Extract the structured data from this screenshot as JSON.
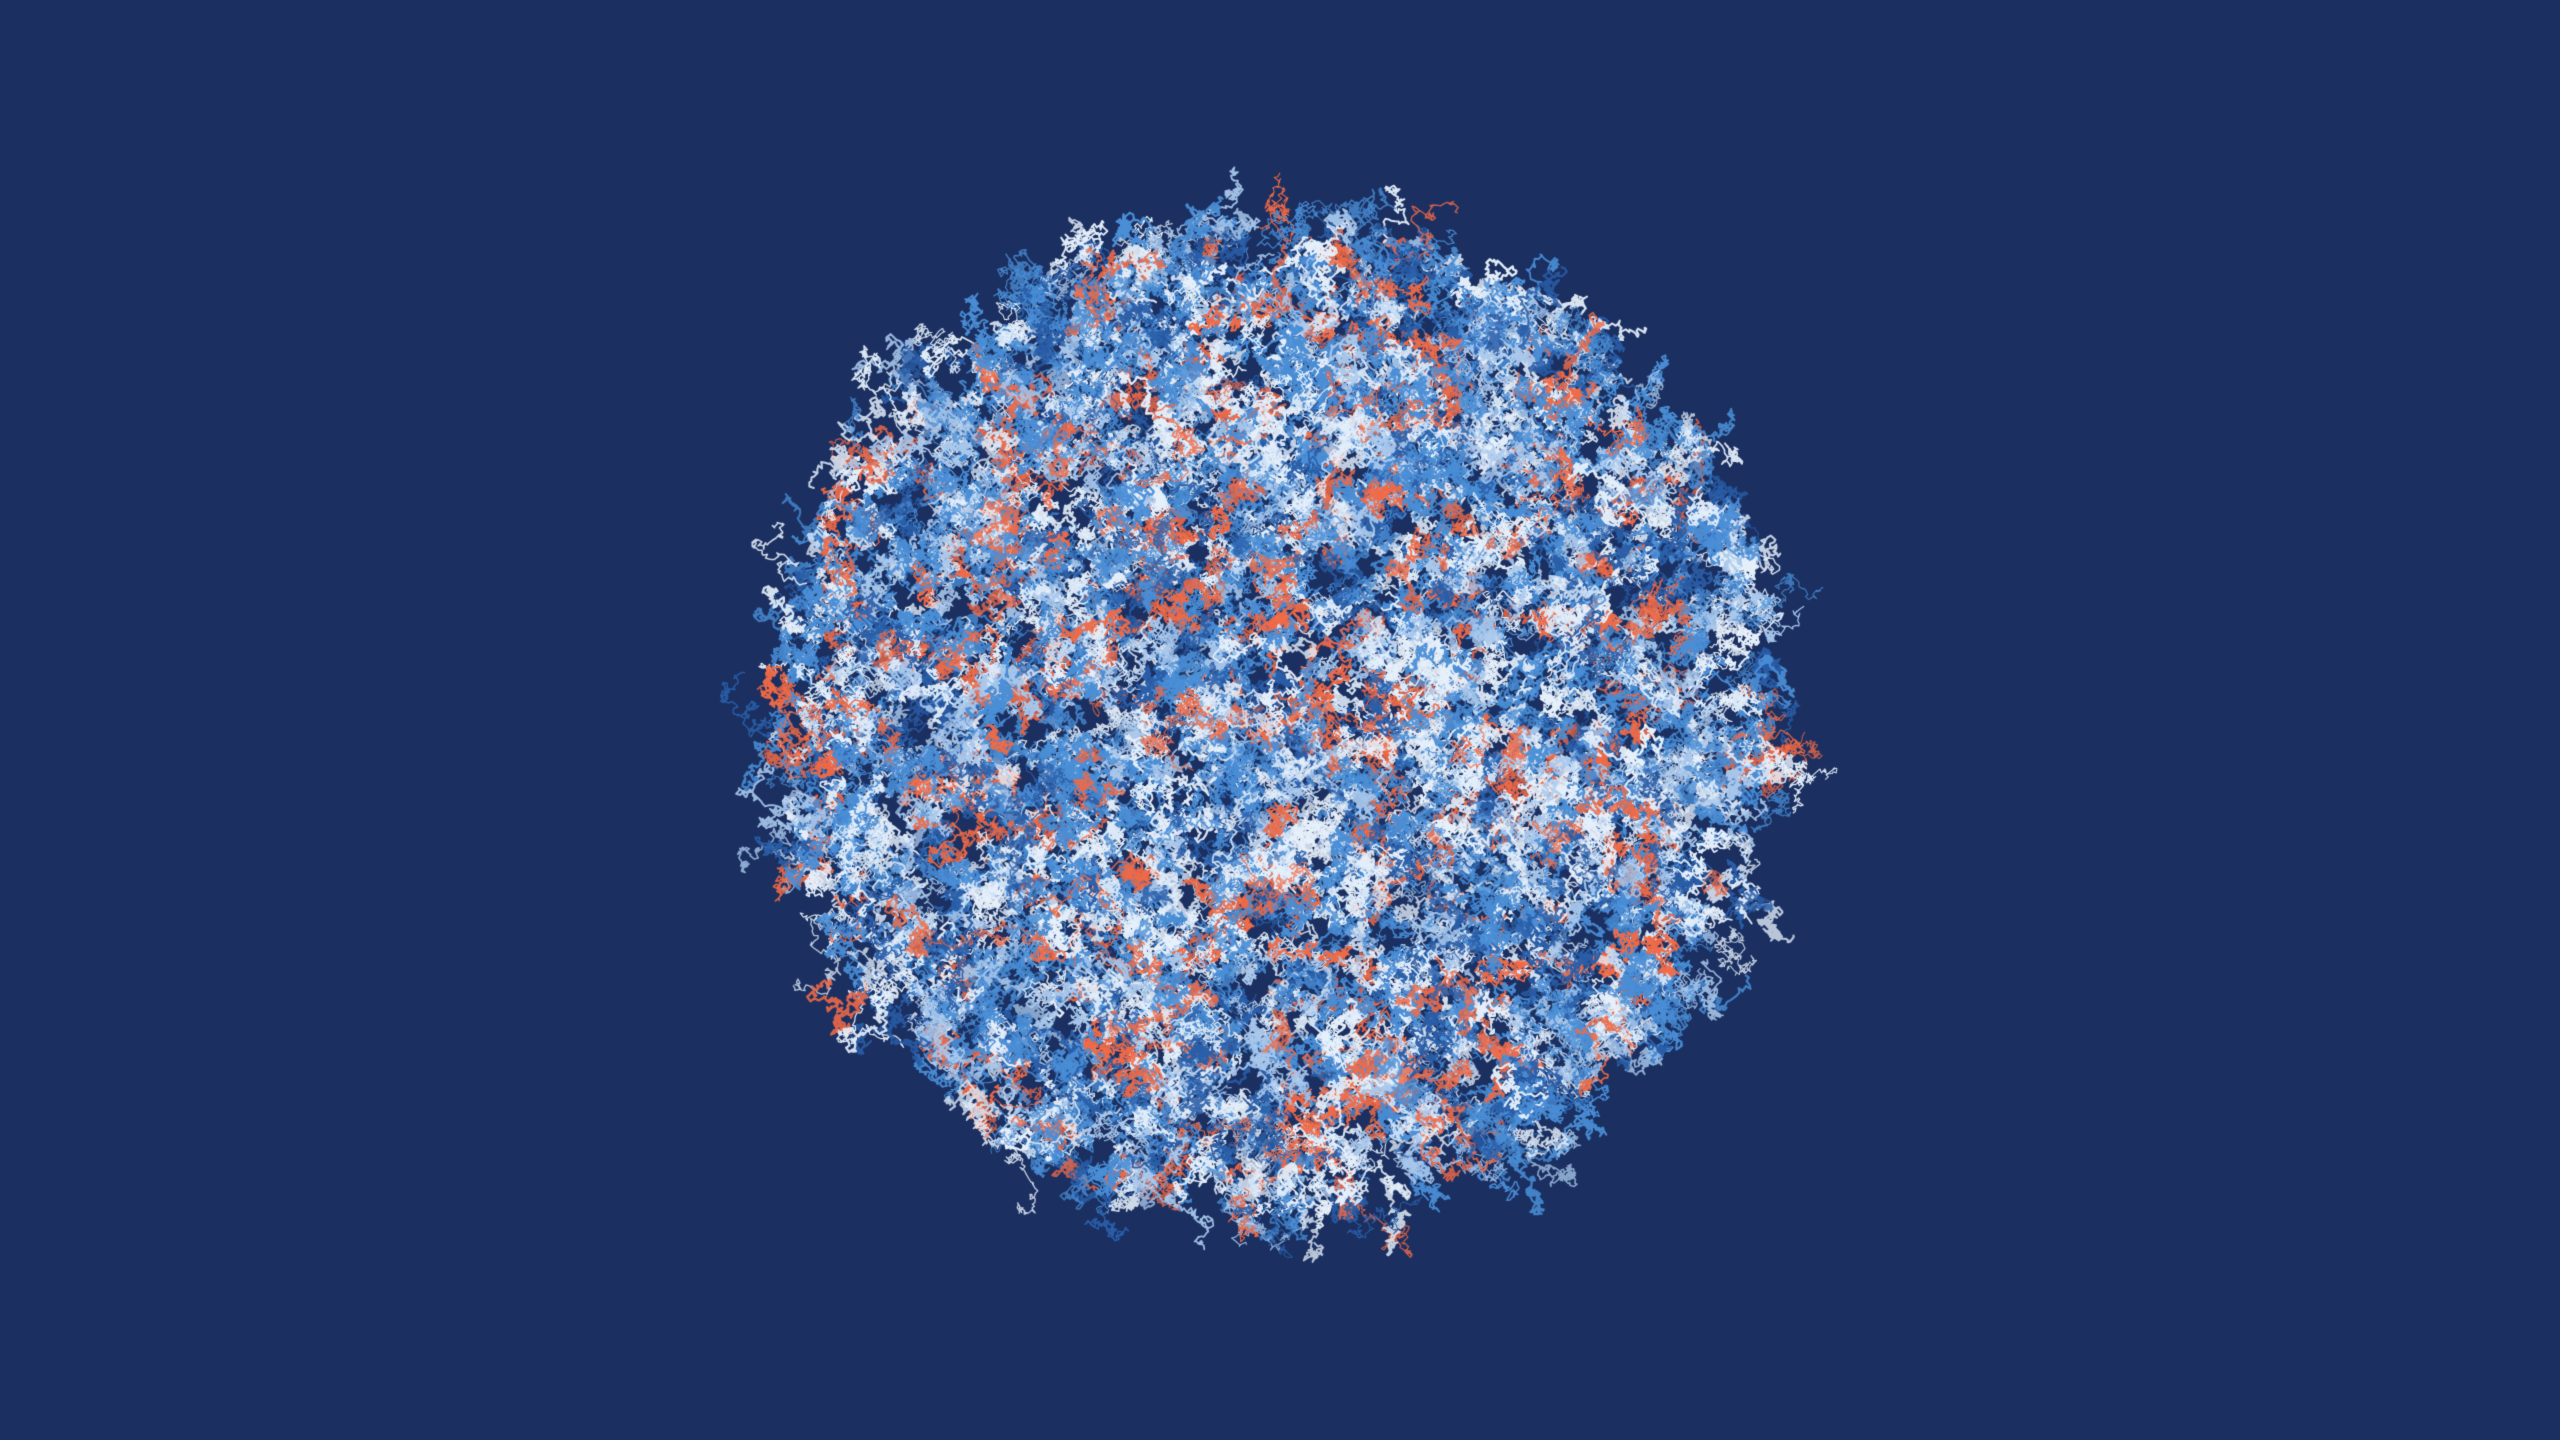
{
  "scene": {
    "background_color": "#1b3061",
    "palette": {
      "orange": "#f06a47",
      "white": "#e6f0fb",
      "light_blue": "#a9c8ec",
      "mid_blue": "#4a8ed6",
      "dark_blue": "#2a5ea8"
    }
  }
}
